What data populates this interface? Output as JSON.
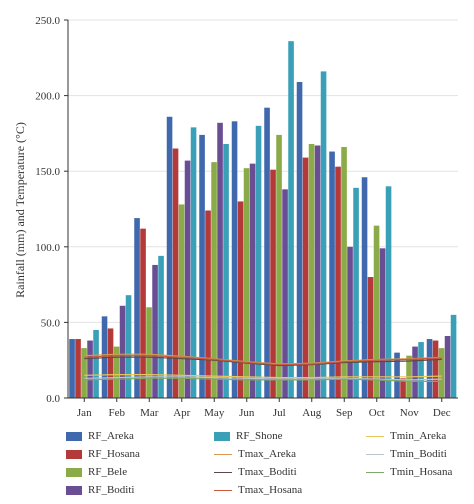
{
  "chart_data": {
    "type": "bar",
    "ylabel": "Rainfall (mm) and Temperature (°C)",
    "ylim": [
      0,
      250
    ],
    "yticks": [
      "0.0",
      "50.0",
      "100.0",
      "150.0",
      "200.0",
      "250.0"
    ],
    "categories": [
      "Jan",
      "Feb",
      "Mar",
      "Apr",
      "May",
      "Jun",
      "Jul",
      "Aug",
      "Sep",
      "Oct",
      "Nov",
      "Dec"
    ],
    "bar_series": [
      {
        "name": "RF_Areka",
        "color": "#3f68ad",
        "values": [
          39,
          54,
          119,
          186,
          174,
          183,
          192,
          209,
          163,
          146,
          30,
          39
        ]
      },
      {
        "name": "RF_Hosana",
        "color": "#b43a3a",
        "values": [
          39,
          46,
          112,
          165,
          124,
          130,
          151,
          159,
          153,
          80,
          13,
          38
        ]
      },
      {
        "name": "RF_Bele",
        "color": "#8aab47",
        "values": [
          33,
          34,
          60,
          128,
          156,
          152,
          174,
          168,
          166,
          114,
          28,
          33
        ]
      },
      {
        "name": "RF_Boditi",
        "color": "#6a4e94",
        "values": [
          38,
          61,
          88,
          157,
          182,
          155,
          138,
          167,
          100,
          99,
          34,
          41
        ]
      },
      {
        "name": "RF_Shone",
        "color": "#3aa0b8",
        "values": [
          45,
          68,
          94,
          179,
          168,
          180,
          236,
          216,
          139,
          140,
          37,
          55
        ]
      }
    ],
    "line_series": [
      {
        "name": "Tmin_Areka",
        "color": "#e9c65b",
        "values": [
          15,
          15.5,
          15.5,
          15,
          14.5,
          14,
          13.5,
          13.5,
          14,
          14,
          14,
          14.5
        ]
      },
      {
        "name": "Tmin_Boditi",
        "color": "#b9c4cf",
        "values": [
          13,
          13.5,
          14,
          14,
          13.5,
          13,
          12.5,
          12.5,
          13,
          12.5,
          12,
          12.5
        ]
      },
      {
        "name": "Tmin_Hosana",
        "color": "#7fa86a",
        "values": [
          12,
          12.5,
          13,
          13,
          12.5,
          12,
          12,
          12,
          12.5,
          12,
          11,
          11
        ]
      },
      {
        "name": "Tmax_Areka",
        "color": "#d7984f",
        "values": [
          28,
          29,
          29,
          27.5,
          26,
          24,
          22.5,
          23,
          24.5,
          25.5,
          26,
          27
        ]
      },
      {
        "name": "Tmax_Boditi",
        "color": "#5a4a4a",
        "values": [
          26,
          27,
          27,
          26,
          25,
          23,
          21.5,
          22,
          23.5,
          24,
          24.5,
          25.5
        ]
      },
      {
        "name": "Tmax_Hosana",
        "color": "#c95a3f",
        "values": [
          27,
          28,
          28,
          27,
          25.5,
          23.5,
          22,
          22.5,
          24,
          25,
          25.5,
          26.5
        ]
      }
    ],
    "legend": {
      "position": "bottom",
      "items": [
        {
          "name": "RF_Areka",
          "kind": "bar",
          "color": "#3f68ad"
        },
        {
          "name": "RF_Shone",
          "kind": "bar",
          "color": "#3aa0b8"
        },
        {
          "name": "Tmin_Areka",
          "kind": "line",
          "color": "#e9c65b"
        },
        {
          "name": "RF_Hosana",
          "kind": "bar",
          "color": "#b43a3a"
        },
        {
          "name": "Tmax_Areka",
          "kind": "line",
          "color": "#d7984f"
        },
        {
          "name": "Tmin_Boditi",
          "kind": "line",
          "color": "#b9c4cf"
        },
        {
          "name": "RF_Bele",
          "kind": "bar",
          "color": "#8aab47"
        },
        {
          "name": "Tmax_Boditi",
          "kind": "line",
          "color": "#5a4a4a"
        },
        {
          "name": "Tmin_Hosana",
          "kind": "line",
          "color": "#7fa86a"
        },
        {
          "name": "RF_Boditi",
          "kind": "bar",
          "color": "#6a4e94"
        },
        {
          "name": "Tmax_Hosana",
          "kind": "line",
          "color": "#c95a3f"
        }
      ]
    }
  }
}
